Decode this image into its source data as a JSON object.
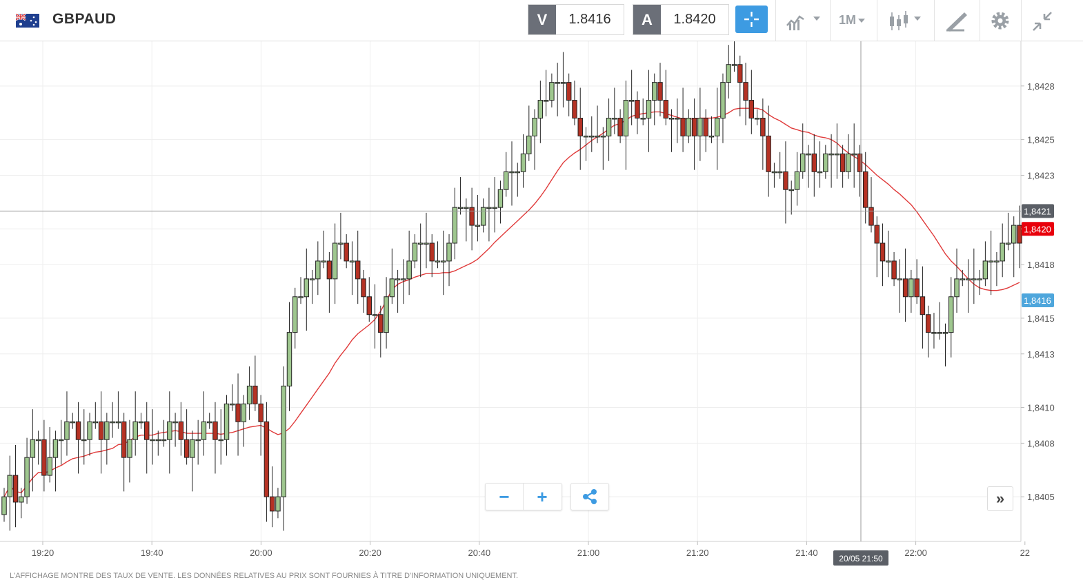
{
  "header": {
    "symbol": "GBPAUD",
    "flag_icon": "gb-au-flag-icon",
    "sell_label": "V",
    "sell_price": "1.8416",
    "buy_label": "A",
    "buy_price": "1.8420",
    "timeframe": "1M",
    "accent": "#3d9be2"
  },
  "chart_data": {
    "type": "candlestick",
    "instrument": "GBPAUD",
    "interval": "1M",
    "ylim": [
      1.84025,
      1.84305
    ],
    "y_ticks": [
      "1,8428",
      "1,8425",
      "1,8423",
      "1,8420",
      "1,8418",
      "1,8415",
      "1,8413",
      "1,8410",
      "1,8408",
      "1,8405"
    ],
    "x_ticks": [
      "19:20",
      "19:40",
      "20:00",
      "20:20",
      "20:40",
      "21:00",
      "21:20",
      "21:40",
      "22:00",
      "22"
    ],
    "crosshair": {
      "price": "1,8421",
      "time": "20/05 21:50",
      "price_value": 1.8421
    },
    "sell_marker": {
      "label": "1,8420",
      "value": 1.842,
      "color": "#e8000b"
    },
    "bid_marker": {
      "label": "1,8416",
      "value": 1.8416,
      "color": "#4ea6dc"
    },
    "colors": {
      "up": "#9fc78f",
      "down": "#b53224",
      "ma": "#e03a3a"
    },
    "grid": true,
    "candles_close": [
      1.8405,
      1.84062,
      1.84047,
      1.8405,
      1.84072,
      1.84082,
      1.84082,
      1.84062,
      1.84072,
      1.84082,
      1.84082,
      1.84092,
      1.84092,
      1.84082,
      1.84082,
      1.84092,
      1.84092,
      1.84082,
      1.84092,
      1.84092,
      1.84092,
      1.84072,
      1.84082,
      1.84092,
      1.84092,
      1.84082,
      1.84082,
      1.84082,
      1.84082,
      1.84092,
      1.84092,
      1.84082,
      1.84072,
      1.84082,
      1.84082,
      1.84092,
      1.84092,
      1.84082,
      1.84082,
      1.84102,
      1.84102,
      1.84092,
      1.84102,
      1.84112,
      1.84102,
      1.84092,
      1.8405,
      1.84042,
      1.8405,
      1.84112,
      1.84142,
      1.84162,
      1.84162,
      1.84172,
      1.84172,
      1.84182,
      1.84182,
      1.84172,
      1.84192,
      1.84192,
      1.84182,
      1.84182,
      1.84172,
      1.84162,
      1.84152,
      1.84152,
      1.84142,
      1.84162,
      1.84172,
      1.84172,
      1.84172,
      1.84182,
      1.84192,
      1.84192,
      1.84192,
      1.84182,
      1.84182,
      1.84182,
      1.84192,
      1.84212,
      1.84212,
      1.84212,
      1.84202,
      1.84202,
      1.84212,
      1.84212,
      1.84212,
      1.84222,
      1.84232,
      1.84232,
      1.84232,
      1.84242,
      1.84252,
      1.84262,
      1.84272,
      1.84272,
      1.84282,
      1.84282,
      1.84282,
      1.84272,
      1.84262,
      1.84252,
      1.84252,
      1.84252,
      1.84252,
      1.84252,
      1.84262,
      1.84262,
      1.84252,
      1.84272,
      1.84272,
      1.84262,
      1.84262,
      1.84272,
      1.84282,
      1.84272,
      1.84262,
      1.84262,
      1.84262,
      1.84252,
      1.84262,
      1.84252,
      1.84262,
      1.84252,
      1.84252,
      1.84262,
      1.84282,
      1.84292,
      1.84292,
      1.84282,
      1.84272,
      1.84262,
      1.84262,
      1.84252,
      1.84232,
      1.84232,
      1.84232,
      1.84222,
      1.84222,
      1.84232,
      1.84242,
      1.84242,
      1.84232,
      1.84232,
      1.84242,
      1.84242,
      1.84242,
      1.84232,
      1.84242,
      1.84242,
      1.84232,
      1.84212,
      1.84202,
      1.84192,
      1.84182,
      1.84182,
      1.84172,
      1.84172,
      1.84162,
      1.84172,
      1.84162,
      1.84152,
      1.84142,
      1.84142,
      1.84142,
      1.84142,
      1.84162,
      1.84172,
      1.84172,
      1.84172,
      1.84172,
      1.84172,
      1.84182,
      1.84182,
      1.84182,
      1.84192,
      1.84192,
      1.84202,
      1.84192
    ]
  },
  "zoom": {
    "minus": "−",
    "plus": "+",
    "share_icon": "share-icon"
  },
  "scroll_forward": "»",
  "disclaimer": "L'AFFICHAGE MONTRE DES TAUX DE VENTE. LES DONNÉES RELATIVES AU PRIX SONT FOURNIES À TITRE D'INFORMATION UNIQUEMENT."
}
